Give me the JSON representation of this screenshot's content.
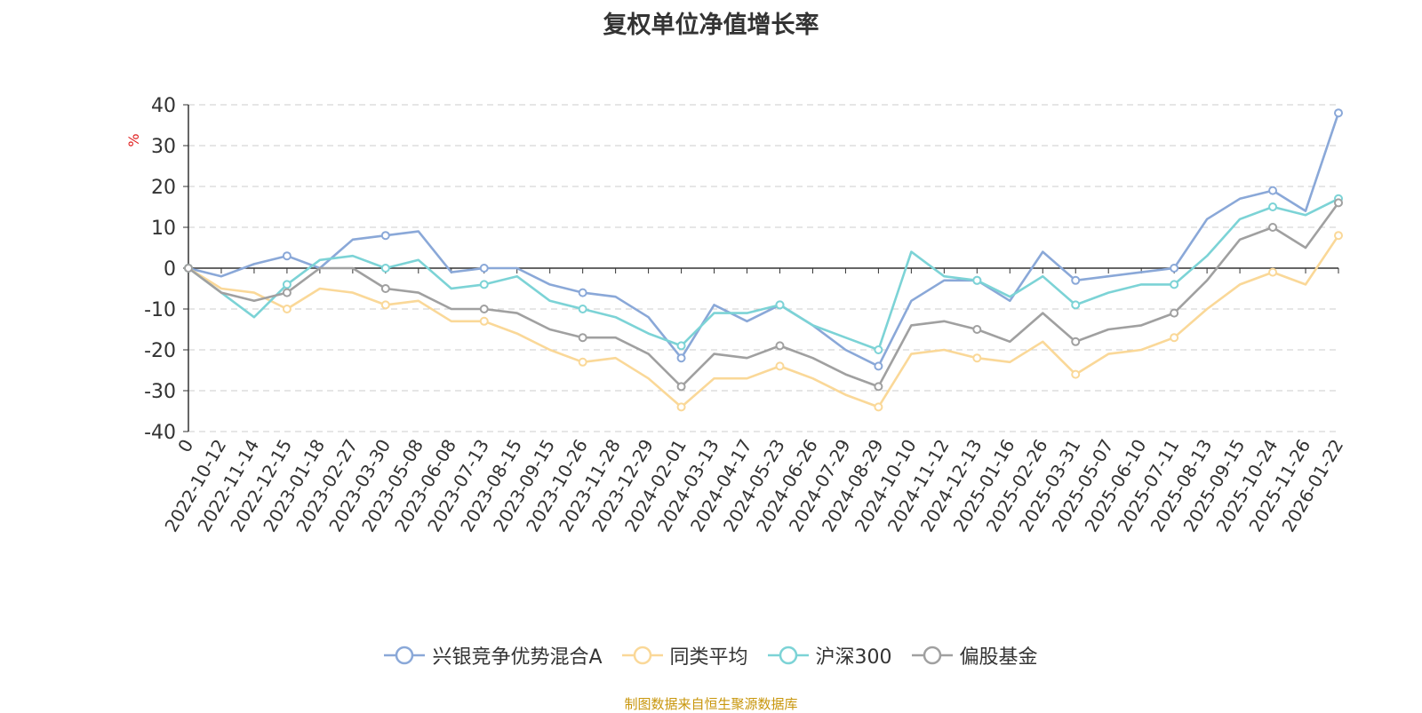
{
  "chart_data": {
    "type": "line",
    "title": "复权单位净值增长率",
    "ylabel": "%",
    "ylim": [
      -40,
      40
    ],
    "yticks": [
      40,
      30,
      20,
      10,
      0,
      -10,
      -20,
      -30,
      -40
    ],
    "grid": true,
    "legend_position": "bottom",
    "categories": [
      "0",
      "2022-10-12",
      "2022-11-14",
      "2022-12-15",
      "2023-01-18",
      "2023-02-27",
      "2023-03-30",
      "2023-05-08",
      "2023-06-08",
      "2023-07-13",
      "2023-08-15",
      "2023-09-15",
      "2023-10-26",
      "2023-11-28",
      "2023-12-29",
      "2024-02-01",
      "2024-03-13",
      "2024-04-17",
      "2024-05-23",
      "2024-06-26",
      "2024-07-29",
      "2024-08-29",
      "2024-10-10",
      "2024-11-12",
      "2024-12-13",
      "2025-01-16",
      "2025-02-26",
      "2025-03-31",
      "2025-05-07",
      "2025-06-10",
      "2025-07-11",
      "2025-08-13",
      "2025-09-15",
      "2025-10-24",
      "2025-11-26",
      "2026-01-22"
    ],
    "series": [
      {
        "name": "兴银竞争优势混合A",
        "color": "#8aa8d8",
        "values": [
          0,
          -2,
          1,
          3,
          0,
          7,
          8,
          9,
          -1,
          0,
          0,
          -4,
          -6,
          -7,
          -12,
          -22,
          -9,
          -13,
          -9,
          -14,
          -20,
          -24,
          -8,
          -3,
          -3,
          -8,
          4,
          -3,
          -2,
          -1,
          0,
          12,
          17,
          19,
          14,
          38
        ]
      },
      {
        "name": "同类平均",
        "color": "#fad898",
        "values": [
          0,
          -5,
          -6,
          -10,
          -5,
          -6,
          -9,
          -8,
          -13,
          -13,
          -16,
          -20,
          -23,
          -22,
          -27,
          -34,
          -27,
          -27,
          -24,
          -27,
          -31,
          -34,
          -21,
          -20,
          -22,
          -23,
          -18,
          -26,
          -21,
          -20,
          -17,
          -10,
          -4,
          -1,
          -4,
          8
        ]
      },
      {
        "name": "沪深300",
        "color": "#7cd3d6",
        "values": [
          0,
          -6,
          -12,
          -4,
          2,
          3,
          0,
          2,
          -5,
          -4,
          -2,
          -8,
          -10,
          -12,
          -16,
          -19,
          -11,
          -11,
          -9,
          -14,
          -17,
          -20,
          4,
          -2,
          -3,
          -7,
          -2,
          -9,
          -6,
          -4,
          -4,
          3,
          12,
          15,
          13,
          17
        ]
      },
      {
        "name": "偏股基金",
        "color": "#a0a0a0",
        "values": [
          0,
          -6,
          -8,
          -6,
          0,
          0,
          -5,
          -6,
          -10,
          -10,
          -11,
          -15,
          -17,
          -17,
          -21,
          -29,
          -21,
          -22,
          -19,
          -22,
          -26,
          -29,
          -14,
          -13,
          -15,
          -18,
          -11,
          -18,
          -15,
          -14,
          -11,
          -3,
          7,
          10,
          5,
          16
        ]
      }
    ]
  },
  "source_note": "制图数据来自恒生聚源数据库"
}
